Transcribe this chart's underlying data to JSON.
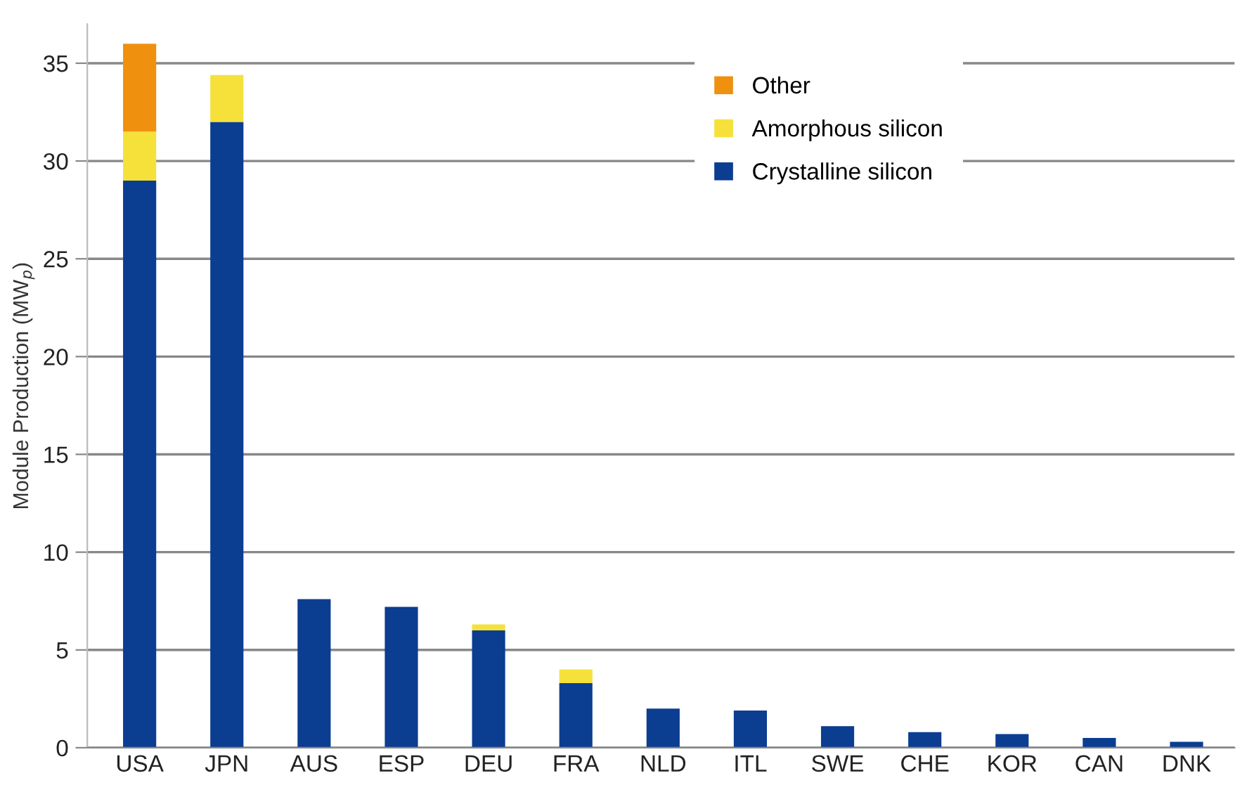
{
  "chart_data": {
    "type": "bar",
    "stacked": true,
    "ylabel": "Module Production (MW$_{p}$)",
    "categories": [
      "USA",
      "JPN",
      "AUS",
      "ESP",
      "DEU",
      "FRA",
      "NLD",
      "ITL",
      "SWE",
      "CHE",
      "KOR",
      "CAN",
      "DNK"
    ],
    "series": [
      {
        "name": "Crystalline silicon",
        "color": "#0b3d91",
        "values": [
          29,
          32,
          7.6,
          7.2,
          6.0,
          3.3,
          2.0,
          1.9,
          1.1,
          0.8,
          0.7,
          0.5,
          0.3
        ]
      },
      {
        "name": "Amorphous silicon",
        "color": "#f5e13a",
        "values": [
          2.5,
          2.4,
          null,
          null,
          0.3,
          0.7,
          null,
          null,
          null,
          null,
          null,
          null,
          null
        ]
      },
      {
        "name": "Other",
        "color": "#f0900f",
        "values": [
          4.5,
          null,
          null,
          null,
          null,
          null,
          null,
          null,
          null,
          null,
          null,
          null,
          null
        ]
      }
    ],
    "ylim": [
      0,
      37
    ],
    "yticks": [
      0,
      5,
      10,
      15,
      20,
      25,
      30,
      35
    ],
    "grid": "y",
    "legend": "top right"
  }
}
